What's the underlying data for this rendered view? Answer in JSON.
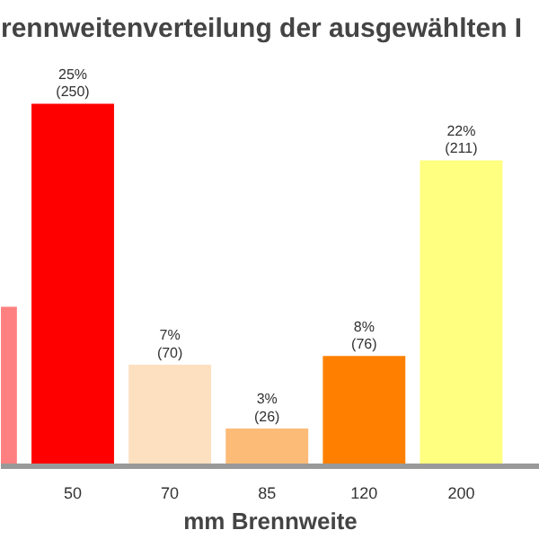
{
  "chart_data": {
    "type": "bar",
    "title": "rennweitenverteilung der ausgewählten I",
    "xlabel": "mm Brennweite",
    "categories": [
      null,
      "50",
      "70",
      "85",
      "120",
      "200"
    ],
    "values": [
      110,
      250,
      70,
      26,
      76,
      211
    ],
    "colors": [
      "#ff8080",
      "#ff0000",
      "#fde0c0",
      "#fdbb78",
      "#ff8000",
      "#ffff80"
    ],
    "value_labels": [
      null,
      "25%\n(250)",
      "7%\n(70)",
      "3%\n(26)",
      "8%\n(76)",
      "22%\n(211)"
    ],
    "grid": false
  }
}
